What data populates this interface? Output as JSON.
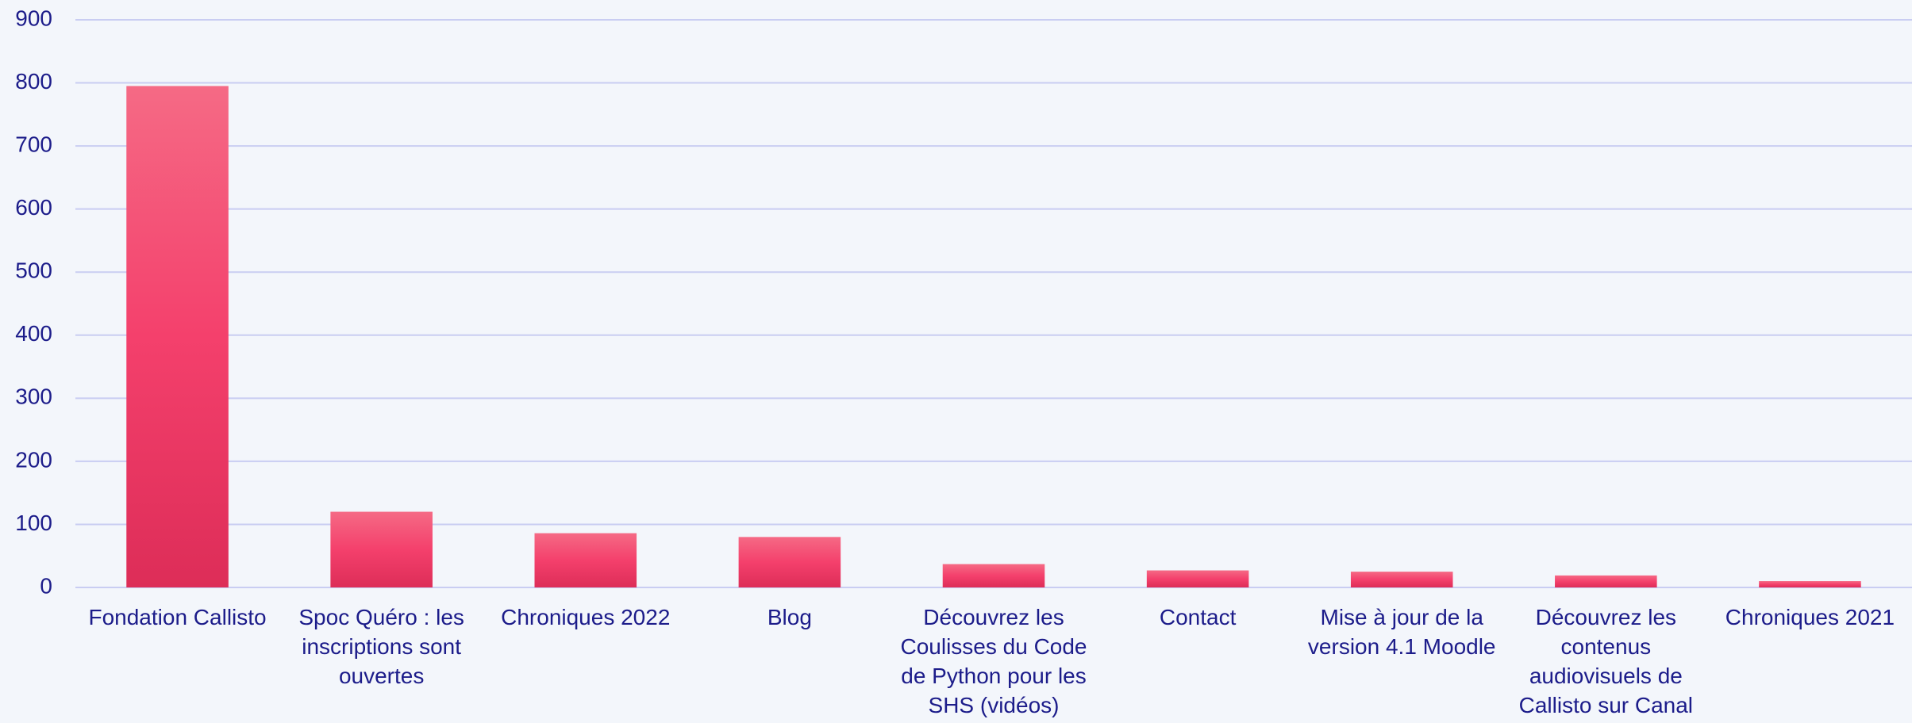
{
  "chart_data": {
    "type": "bar",
    "categories": [
      "Fondation Callisto",
      "Spoc Quéro : les inscriptions sont ouvertes",
      "Chroniques 2022",
      "Blog",
      "Découvrez les Coulisses du Code de Python pour les SHS (vidéos)",
      "Contact",
      "Mise à jour de la version 4.1 Moodle",
      "Découvrez les contenus audiovisuels de Callisto sur Canal U",
      "Chroniques 2021"
    ],
    "values": [
      795,
      120,
      86,
      80,
      37,
      27,
      25,
      19,
      10
    ],
    "color": "#f0456e",
    "ylim": [
      0,
      900
    ],
    "yticks": [
      0,
      100,
      200,
      300,
      400,
      500,
      600,
      700,
      800,
      900
    ],
    "grid": true
  }
}
